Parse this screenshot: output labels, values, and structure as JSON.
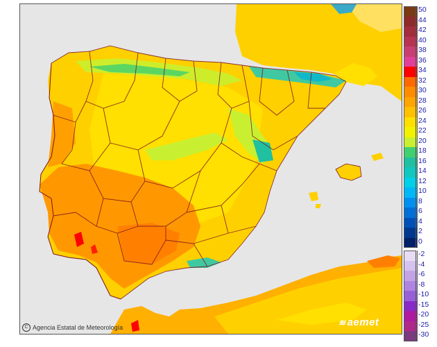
{
  "credit": {
    "copyright_symbol": "C",
    "agency": "Agencia Estatal de Meteorología"
  },
  "logo": {
    "text": "aemet",
    "icon": "aemet-logo-icon"
  },
  "legend": {
    "positive": [
      {
        "label": "50",
        "color": "#7a3a14"
      },
      {
        "label": "44",
        "color": "#8e2a2a"
      },
      {
        "label": "42",
        "color": "#a32c3d"
      },
      {
        "label": "40",
        "color": "#b73352"
      },
      {
        "label": "38",
        "color": "#c93e72"
      },
      {
        "label": "36",
        "color": "#e0409a"
      },
      {
        "label": "34",
        "color": "#ff0000"
      },
      {
        "label": "32",
        "color": "#ff6a00"
      },
      {
        "label": "30",
        "color": "#ff8c00"
      },
      {
        "label": "28",
        "color": "#ffa500"
      },
      {
        "label": "26",
        "color": "#ffc000"
      },
      {
        "label": "24",
        "color": "#ffe000"
      },
      {
        "label": "22",
        "color": "#f2f200"
      },
      {
        "label": "20",
        "color": "#c8f030"
      },
      {
        "label": "18",
        "color": "#40d070"
      },
      {
        "label": "16",
        "color": "#20c0a0"
      },
      {
        "label": "14",
        "color": "#10c8c0"
      },
      {
        "label": "12",
        "color": "#00d0e8"
      },
      {
        "label": "10",
        "color": "#00b8f8"
      },
      {
        "label": "8",
        "color": "#0090f0"
      },
      {
        "label": "6",
        "color": "#0070d8"
      },
      {
        "label": "4",
        "color": "#0050b8"
      },
      {
        "label": "2",
        "color": "#003890"
      },
      {
        "label": "0",
        "color": "#00206a"
      }
    ],
    "negative": [
      {
        "label": "-2",
        "color": "#e8dcf4"
      },
      {
        "label": "-4",
        "color": "#d6c2ee"
      },
      {
        "label": "-6",
        "color": "#c2a4e6"
      },
      {
        "label": "-8",
        "color": "#ae84e0"
      },
      {
        "label": "-10",
        "color": "#9860d8"
      },
      {
        "label": "-15",
        "color": "#8a2ac8"
      },
      {
        "label": "-20",
        "color": "#b01aa0"
      },
      {
        "label": "-25",
        "color": "#b0288a"
      },
      {
        "label": "-30",
        "color": "#7a3a80"
      }
    ]
  }
}
